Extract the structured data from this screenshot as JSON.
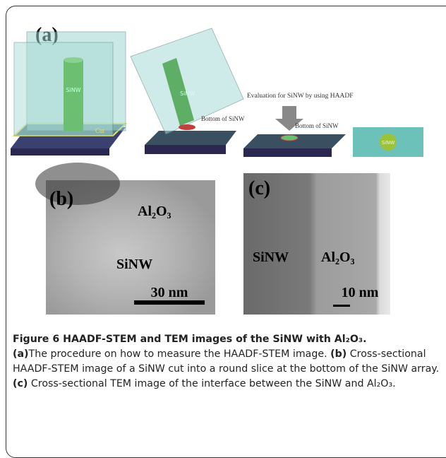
{
  "figure": {
    "panel_a": {
      "label": "(a)",
      "box1_nw": "SiNW",
      "box1_cut": "Cut",
      "box2_nw": "SiNW",
      "box2_bottom": "Bottom of SiNW",
      "evaluation": "Evaluation for SiNW by using HAADF",
      "box3_bottom": "Bottom of SiNW",
      "slice_nw": "SiNW"
    },
    "panel_b": {
      "label": "(b)",
      "al2o3": "Al₂O₃",
      "sinw": "SiNW",
      "scale": "30 nm"
    },
    "panel_c": {
      "label": "(c)",
      "sinw": "SiNW",
      "al2o3": "Al₂O₃",
      "scale": "10 nm"
    }
  },
  "caption": {
    "title": "Figure 6 HAADF-STEM and TEM images of the SiNW with Al₂O₃.",
    "a_label": "(a)",
    "a_text": "The procedure on how to measure the HAADF-STEM image.",
    "b_label": "(b)",
    "b_text": "Cross-sectional HAADF-STEM image of a SiNW cut into a round slice at the bottom of the SiNW array.",
    "c_label": "(c)",
    "c_text": "Cross-sectional TEM image of the interface between the SiNW and Al₂O₃."
  }
}
